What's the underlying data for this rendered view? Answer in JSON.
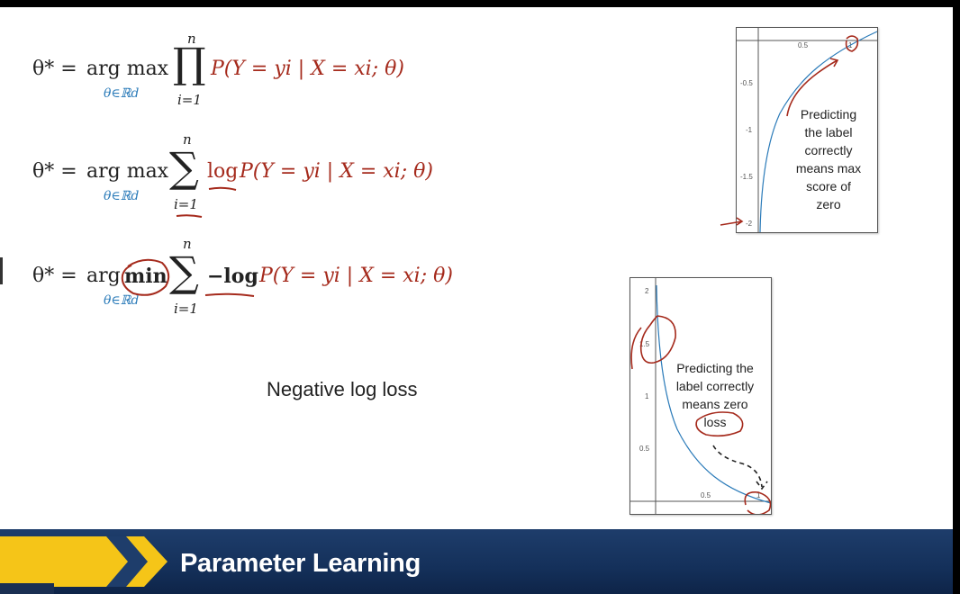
{
  "equations": {
    "lhs": "θ* =",
    "eq1": {
      "operator": "arg max",
      "subscript": "θ∈ℝd",
      "big_op": "∏",
      "upper": "n",
      "lower": "i=1",
      "body": "P(Y = yi | X = xi; θ)"
    },
    "eq2": {
      "operator": "arg max",
      "subscript": "θ∈ℝd",
      "big_op": "∑",
      "upper": "n",
      "lower": "i=1",
      "log": "log",
      "body": "P(Y = yi | X = xi; θ)"
    },
    "eq3": {
      "operator_prefix": "arg",
      "operator": "min",
      "subscript": "θ∈ℝd",
      "big_op": "∑",
      "upper": "n",
      "lower": "i=1",
      "log": "−log",
      "body": "P(Y = yi | X = xi; θ)"
    },
    "brace_label": "Negative log loss"
  },
  "log_plot": {
    "x_ticks": [
      "0.5",
      "1"
    ],
    "y_ticks": [
      "-0.5",
      "-1",
      "-1.5",
      "-2"
    ],
    "note": [
      "Predicting",
      "the label",
      "correctly",
      "means max",
      "score of",
      "zero"
    ]
  },
  "neglog_plot": {
    "x_ticks": [
      "0.5",
      "1"
    ],
    "y_ticks": [
      "2",
      "1.5",
      "1",
      "0.5"
    ],
    "note": [
      "Predicting the",
      "label correctly",
      "means zero",
      "loss"
    ]
  },
  "colors": {
    "curve": "#2b7bb9",
    "ink": "#a52a1c",
    "footer_bar": "#14305a",
    "chevron": "#f5c518"
  },
  "footer": {
    "title": "Parameter Learning"
  }
}
